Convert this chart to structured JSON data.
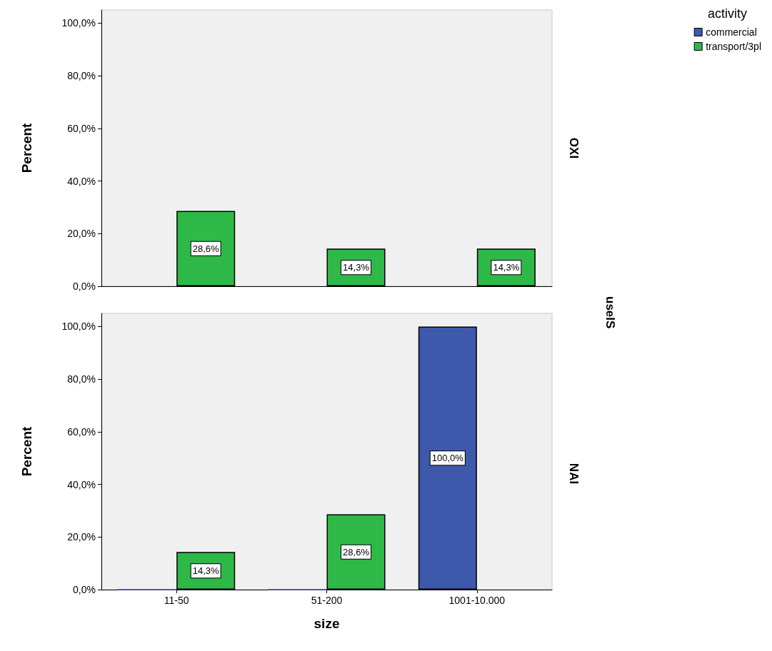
{
  "chart_data": [
    {
      "type": "bar",
      "y2label": "OXI",
      "ylabel": "Percent",
      "categories": [
        null,
        null,
        null
      ],
      "series": [
        {
          "name": "commercial",
          "color": "#3e58ac",
          "values": [
            null,
            null,
            null
          ],
          "value_labels": [
            null,
            null,
            null
          ]
        },
        {
          "name": "transport/3pl",
          "color": "#2eb848",
          "values": [
            28.6,
            14.3,
            14.3
          ],
          "value_labels": [
            "28,6%",
            "14,3%",
            "14,3%"
          ]
        }
      ],
      "ylim": [
        0,
        105
      ],
      "yticks": [
        {
          "value": 0,
          "label": "0,0%"
        },
        {
          "value": 20,
          "label": "20,0%"
        },
        {
          "value": 40,
          "label": "40,0%"
        },
        {
          "value": 60,
          "label": "60,0%"
        },
        {
          "value": 80,
          "label": "80,0%"
        },
        {
          "value": 100,
          "label": "100,0%"
        }
      ],
      "legend": "top right",
      "legend_title": "activity",
      "tick_labels": "y"
    },
    {
      "type": "bar",
      "y2label": "NAI",
      "ylabel": "Percent",
      "xlabel": "size",
      "categories": [
        "11-50",
        "51-200",
        "1001-10.000"
      ],
      "series": [
        {
          "color": "#3e58ac",
          "values": [
            0,
            0,
            100
          ],
          "value_labels": [
            null,
            null,
            "100,0%"
          ]
        },
        {
          "color": "#2eb848",
          "values": [
            14.3,
            28.6,
            null
          ],
          "value_labels": [
            "14,3%",
            "28,6%",
            null
          ]
        }
      ],
      "ylim": [
        0,
        105
      ],
      "yticks": [
        {
          "value": 0,
          "label": "0,0%"
        },
        {
          "value": 20,
          "label": "20,0%"
        },
        {
          "value": 40,
          "label": "40,0%"
        },
        {
          "value": 60,
          "label": "60,0%"
        },
        {
          "value": 80,
          "label": "80,0%"
        },
        {
          "value": 100,
          "label": "100,0%"
        }
      ],
      "annotations": [
        "useIS"
      ]
    }
  ]
}
